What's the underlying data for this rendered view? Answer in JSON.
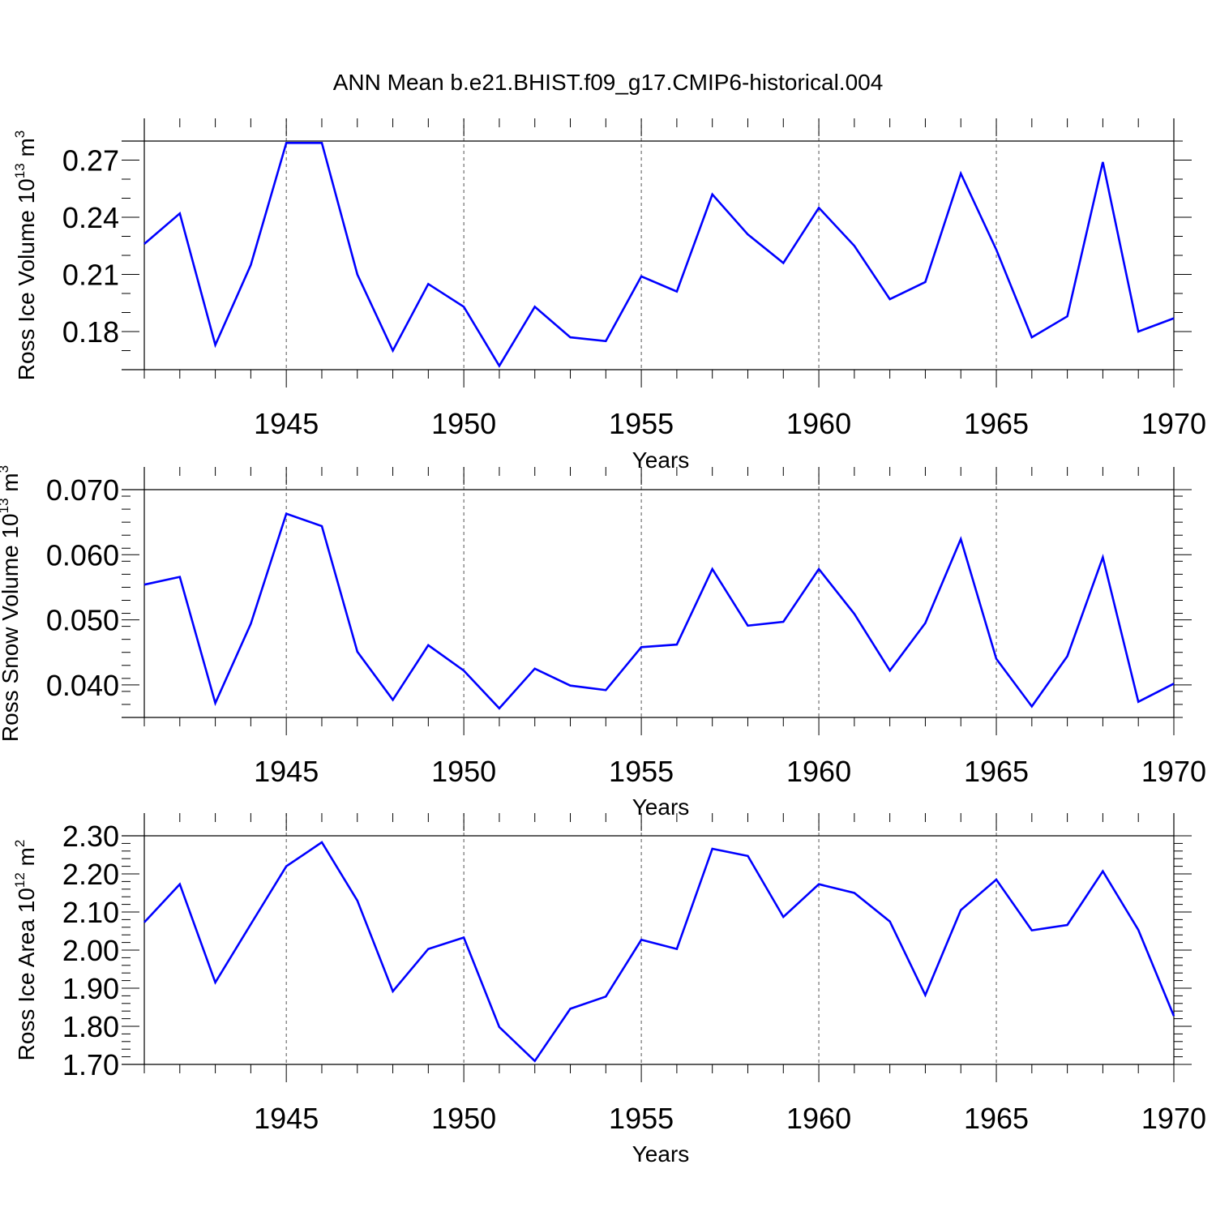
{
  "figure_title": "ANN Mean b.e21.BHIST.f09_g17.CMIP6-historical.004",
  "chart_data": [
    {
      "type": "line",
      "title": "ANN Mean b.e21.BHIST.f09_g17.CMIP6-historical.004",
      "xlabel": "Years",
      "ylabel": {
        "main": "Ross Ice Volume 10",
        "exp": "13",
        "unit": " m",
        "unit_exp": "3"
      },
      "xlim": [
        1941,
        1970
      ],
      "ylim": [
        0.16,
        0.28
      ],
      "xticks": [
        "1945",
        "1950",
        "1955",
        "1960",
        "1965",
        "1970"
      ],
      "yticks": [
        "0.18",
        "0.21",
        "0.24",
        "0.27"
      ],
      "ytick_values": [
        0.18,
        0.21,
        0.24,
        0.27
      ],
      "y_minor_step": 0.01,
      "line_color": "#0000ff",
      "x": [
        1941,
        1942,
        1943,
        1944,
        1945,
        1946,
        1947,
        1948,
        1949,
        1950,
        1951,
        1952,
        1953,
        1954,
        1955,
        1956,
        1957,
        1958,
        1959,
        1960,
        1961,
        1962,
        1963,
        1964,
        1965,
        1966,
        1967,
        1968,
        1969,
        1970
      ],
      "series": [
        {
          "name": "Ross Ice Volume",
          "values": [
            0.226,
            0.242,
            0.173,
            0.215,
            0.279,
            0.279,
            0.21,
            0.17,
            0.205,
            0.193,
            0.162,
            0.193,
            0.177,
            0.175,
            0.209,
            0.201,
            0.252,
            0.231,
            0.216,
            0.245,
            0.225,
            0.197,
            0.206,
            0.263,
            0.223,
            0.177,
            0.188,
            0.269,
            0.18,
            0.187
          ]
        }
      ]
    },
    {
      "type": "line",
      "xlabel": "Years",
      "ylabel": {
        "main": "Ross Snow Volume 10",
        "exp": "13",
        "unit": " m",
        "unit_exp": "3"
      },
      "xlim": [
        1941,
        1970
      ],
      "ylim": [
        0.035,
        0.07
      ],
      "xticks": [
        "1945",
        "1950",
        "1955",
        "1960",
        "1965",
        "1970"
      ],
      "yticks": [
        "0.040",
        "0.050",
        "0.060",
        "0.070"
      ],
      "ytick_values": [
        0.04,
        0.05,
        0.06,
        0.07
      ],
      "y_minor_step": 0.002,
      "line_color": "#0000ff",
      "x": [
        1941,
        1942,
        1943,
        1944,
        1945,
        1946,
        1947,
        1948,
        1949,
        1950,
        1951,
        1952,
        1953,
        1954,
        1955,
        1956,
        1957,
        1958,
        1959,
        1960,
        1961,
        1962,
        1963,
        1964,
        1965,
        1966,
        1967,
        1968,
        1969,
        1970
      ],
      "series": [
        {
          "name": "Ross Snow Volume",
          "values": [
            0.0554,
            0.0566,
            0.0372,
            0.0494,
            0.0663,
            0.0644,
            0.0451,
            0.0377,
            0.0461,
            0.0422,
            0.0364,
            0.0425,
            0.0399,
            0.0392,
            0.0458,
            0.0462,
            0.0578,
            0.0491,
            0.0497,
            0.0578,
            0.0509,
            0.0422,
            0.0495,
            0.0624,
            0.044,
            0.0367,
            0.0444,
            0.0596,
            0.0374,
            0.0402
          ]
        }
      ]
    },
    {
      "type": "line",
      "xlabel": "Years",
      "ylabel": {
        "main": "Ross Ice Area 10",
        "exp": "12",
        "unit": " m",
        "unit_exp": "2"
      },
      "xlim": [
        1941,
        1970
      ],
      "ylim": [
        1.7,
        2.3
      ],
      "xticks": [
        "1945",
        "1950",
        "1955",
        "1960",
        "1965",
        "1970"
      ],
      "yticks": [
        "1.70",
        "1.80",
        "1.90",
        "2.00",
        "2.10",
        "2.20",
        "2.30"
      ],
      "ytick_values": [
        1.7,
        1.8,
        1.9,
        2.0,
        2.1,
        2.2,
        2.3
      ],
      "y_minor_step": 0.02,
      "line_color": "#0000ff",
      "x": [
        1941,
        1942,
        1943,
        1944,
        1945,
        1946,
        1947,
        1948,
        1949,
        1950,
        1951,
        1952,
        1953,
        1954,
        1955,
        1956,
        1957,
        1958,
        1959,
        1960,
        1961,
        1962,
        1963,
        1964,
        1965,
        1966,
        1967,
        1968,
        1969,
        1970
      ],
      "series": [
        {
          "name": "Ross Ice Area",
          "values": [
            2.073,
            2.173,
            1.915,
            2.068,
            2.22,
            2.283,
            2.13,
            1.892,
            2.003,
            2.033,
            1.798,
            1.709,
            1.846,
            1.878,
            2.027,
            2.003,
            2.266,
            2.247,
            2.087,
            2.173,
            2.15,
            2.075,
            1.882,
            2.105,
            2.185,
            2.052,
            2.066,
            2.207,
            2.053,
            1.827
          ]
        }
      ]
    }
  ]
}
